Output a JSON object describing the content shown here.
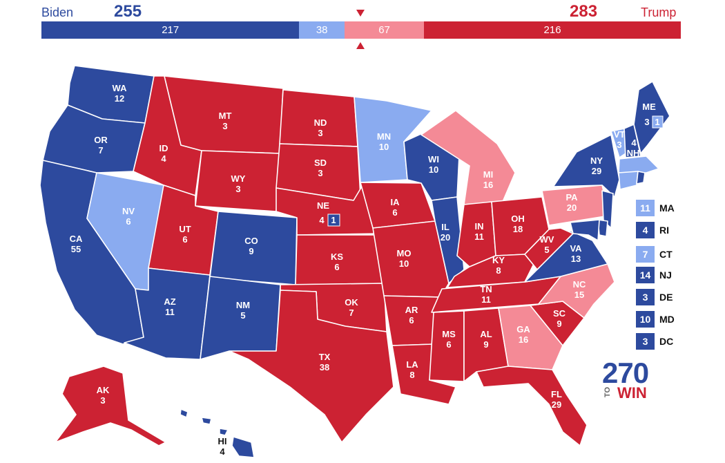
{
  "header": {
    "biden": {
      "name": "Biden",
      "total": "255"
    },
    "trump": {
      "name": "Trump",
      "total": "283"
    },
    "bar": [
      {
        "value": "217",
        "votes": 217,
        "color": "#2d4a9e"
      },
      {
        "value": "38",
        "votes": 38,
        "color": "#8aabf0"
      },
      {
        "value": "67",
        "votes": 67,
        "color": "#f48a96"
      },
      {
        "value": "216",
        "votes": 216,
        "color": "#cc2233"
      }
    ]
  },
  "colors": {
    "safe_dem": "#2d4a9e",
    "lean_dem": "#8aabf0",
    "lean_rep": "#f48a96",
    "safe_rep": "#cc2233"
  },
  "states": {
    "WA": {
      "abbr": "WA",
      "ev": "12"
    },
    "OR": {
      "abbr": "OR",
      "ev": "7"
    },
    "CA": {
      "abbr": "CA",
      "ev": "55"
    },
    "NV": {
      "abbr": "NV",
      "ev": "6"
    },
    "ID": {
      "abbr": "ID",
      "ev": "4"
    },
    "MT": {
      "abbr": "MT",
      "ev": "3"
    },
    "WY": {
      "abbr": "WY",
      "ev": "3"
    },
    "UT": {
      "abbr": "UT",
      "ev": "6"
    },
    "AZ": {
      "abbr": "AZ",
      "ev": "11"
    },
    "CO": {
      "abbr": "CO",
      "ev": "9"
    },
    "NM": {
      "abbr": "NM",
      "ev": "5"
    },
    "ND": {
      "abbr": "ND",
      "ev": "3"
    },
    "SD": {
      "abbr": "SD",
      "ev": "3"
    },
    "NE": {
      "abbr": "NE",
      "ev": "4",
      "cd": "1"
    },
    "KS": {
      "abbr": "KS",
      "ev": "6"
    },
    "OK": {
      "abbr": "OK",
      "ev": "7"
    },
    "TX": {
      "abbr": "TX",
      "ev": "38"
    },
    "MN": {
      "abbr": "MN",
      "ev": "10"
    },
    "IA": {
      "abbr": "IA",
      "ev": "6"
    },
    "MO": {
      "abbr": "MO",
      "ev": "10"
    },
    "AR": {
      "abbr": "AR",
      "ev": "6"
    },
    "LA": {
      "abbr": "LA",
      "ev": "8"
    },
    "WI": {
      "abbr": "WI",
      "ev": "10"
    },
    "IL": {
      "abbr": "IL",
      "ev": "20"
    },
    "MI": {
      "abbr": "MI",
      "ev": "16"
    },
    "IN": {
      "abbr": "IN",
      "ev": "11"
    },
    "OH": {
      "abbr": "OH",
      "ev": "18"
    },
    "KY": {
      "abbr": "KY",
      "ev": "8"
    },
    "TN": {
      "abbr": "TN",
      "ev": "11"
    },
    "MS": {
      "abbr": "MS",
      "ev": "6"
    },
    "AL": {
      "abbr": "AL",
      "ev": "9"
    },
    "GA": {
      "abbr": "GA",
      "ev": "16"
    },
    "FL": {
      "abbr": "FL",
      "ev": "29"
    },
    "SC": {
      "abbr": "SC",
      "ev": "9"
    },
    "NC": {
      "abbr": "NC",
      "ev": "15"
    },
    "VA": {
      "abbr": "VA",
      "ev": "13"
    },
    "WV": {
      "abbr": "WV",
      "ev": "5"
    },
    "PA": {
      "abbr": "PA",
      "ev": "20"
    },
    "NY": {
      "abbr": "NY",
      "ev": "29"
    },
    "VT": {
      "abbr": "VT",
      "ev": "3"
    },
    "NH": {
      "abbr": "NH",
      "ev": "4"
    },
    "ME": {
      "abbr": "ME",
      "ev": "3",
      "cd": "1"
    },
    "AK": {
      "abbr": "AK",
      "ev": "3"
    },
    "HI": {
      "abbr": "HI",
      "ev": "4"
    }
  },
  "small_states": [
    {
      "abbr": "MA",
      "ev": "11",
      "color": "#8aabf0"
    },
    {
      "abbr": "RI",
      "ev": "4",
      "color": "#2d4a9e"
    },
    {
      "abbr": "CT",
      "ev": "7",
      "color": "#8aabf0"
    },
    {
      "abbr": "NJ",
      "ev": "14",
      "color": "#2d4a9e"
    },
    {
      "abbr": "DE",
      "ev": "3",
      "color": "#2d4a9e"
    },
    {
      "abbr": "MD",
      "ev": "10",
      "color": "#2d4a9e"
    },
    {
      "abbr": "DC",
      "ev": "3",
      "color": "#2d4a9e"
    }
  ],
  "logo": {
    "number": "270",
    "to": "TO",
    "win": "WIN"
  }
}
